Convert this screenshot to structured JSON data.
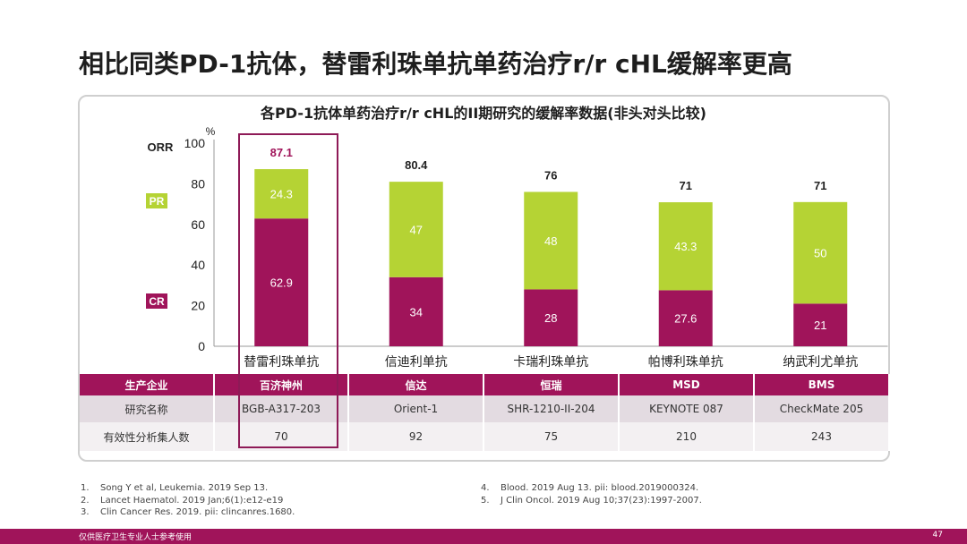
{
  "title": "相比同类PD-1抗体，替雷利珠单抗单药治疗r/r cHL缓解率更高",
  "chart_data": {
    "type": "bar",
    "stacked": true,
    "title": "各PD-1抗体单药治疗r/r cHL的II期研究的缓解率数据(非头对头比较)",
    "ylabel": "ORR",
    "y_unit": "%",
    "ylim": [
      0,
      100
    ],
    "yticks": [
      "0",
      "20",
      "40",
      "60",
      "80",
      "100"
    ],
    "categories": [
      "替雷利珠单抗",
      "信迪利单抗",
      "卡瑞利珠单抗",
      "帕博利珠单抗",
      "纳武利尤单抗"
    ],
    "series": [
      {
        "name": "CR",
        "color": "#a0145a",
        "values": [
          62.9,
          34,
          28,
          27.6,
          21
        ],
        "labels": [
          "62.9",
          "34",
          "28",
          "27.6",
          "21"
        ]
      },
      {
        "name": "PR",
        "color": "#b5d334",
        "values": [
          24.3,
          47,
          48,
          43.3,
          50
        ],
        "labels": [
          "24.3",
          "47",
          "48",
          "43.3",
          "50"
        ]
      }
    ],
    "totals": [
      87.1,
      80.4,
      76,
      71,
      71
    ],
    "total_labels": [
      "87.1",
      "80.4",
      "76",
      "71",
      "71"
    ],
    "highlight_index": 0,
    "highlight_color": "#a0145a",
    "legend_placement": "left"
  },
  "table": {
    "rows": [
      [
        "生产企业",
        "百济神州",
        "信达",
        "恒瑞",
        "MSD",
        "BMS"
      ],
      [
        "研究名称",
        "BGB-A317-203",
        "Orient-1",
        "SHR-1210-II-204",
        "KEYNOTE 087",
        "CheckMate 205"
      ],
      [
        "有效性分析集人数",
        "70",
        "92",
        "75",
        "210",
        "243"
      ]
    ]
  },
  "references": {
    "left": [
      {
        "num": "1.",
        "text": "Song Y et al, Leukemia. 2019 Sep 13."
      },
      {
        "num": "2.",
        "text": "Lancet Haematol. 2019 Jan;6(1):e12-e19"
      },
      {
        "num": "3.",
        "text": "Clin Cancer Res. 2019. pii: clincanres.1680."
      }
    ],
    "right": [
      {
        "num": "4.",
        "text": "Blood. 2019 Aug 13. pii: blood.2019000324."
      },
      {
        "num": "5.",
        "text": "J Clin Oncol. 2019 Aug 10;37(23):1997-2007."
      }
    ]
  },
  "footer": {
    "note": "仅供医疗卫生专业人士参考使用",
    "page": "47"
  }
}
